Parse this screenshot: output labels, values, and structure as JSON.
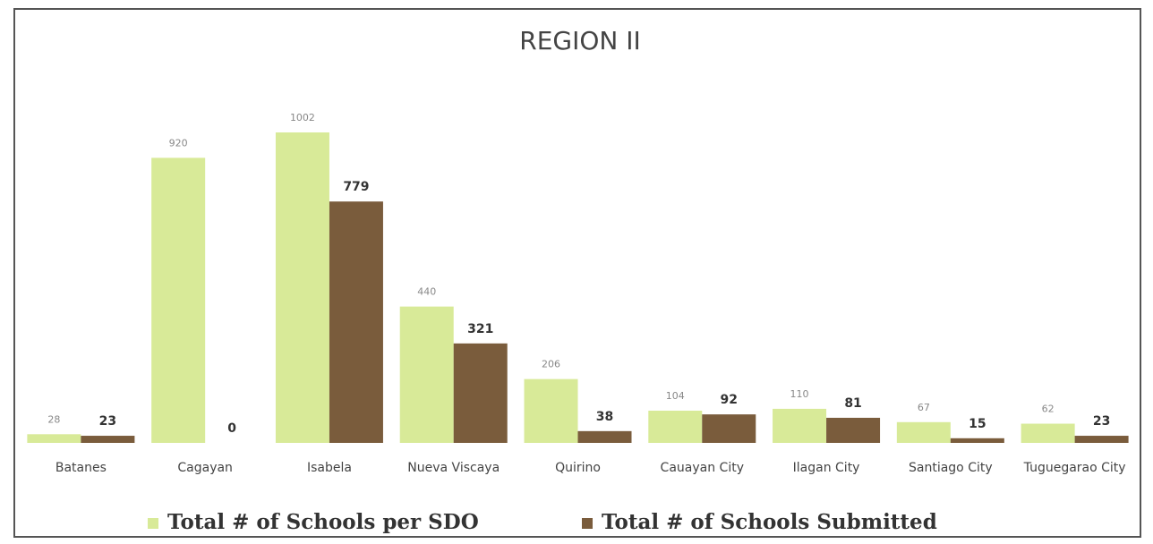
{
  "chart_data": {
    "type": "bar",
    "title": "REGION II",
    "categories": [
      "Batanes",
      "Cagayan",
      "Isabela",
      "Nueva Viscaya",
      "Quirino",
      "Cauayan City",
      "Ilagan City",
      "Santiago City",
      "Tuguegarao City"
    ],
    "series": [
      {
        "name": "Total # of Schools per SDO",
        "color": "#d8ea98",
        "values": [
          28,
          920,
          1002,
          440,
          206,
          104,
          110,
          67,
          62
        ]
      },
      {
        "name": "Total # of Schools Submitted",
        "color": "#7a5c3c",
        "values": [
          23,
          0,
          779,
          321,
          38,
          92,
          81,
          15,
          23
        ]
      }
    ]
  }
}
